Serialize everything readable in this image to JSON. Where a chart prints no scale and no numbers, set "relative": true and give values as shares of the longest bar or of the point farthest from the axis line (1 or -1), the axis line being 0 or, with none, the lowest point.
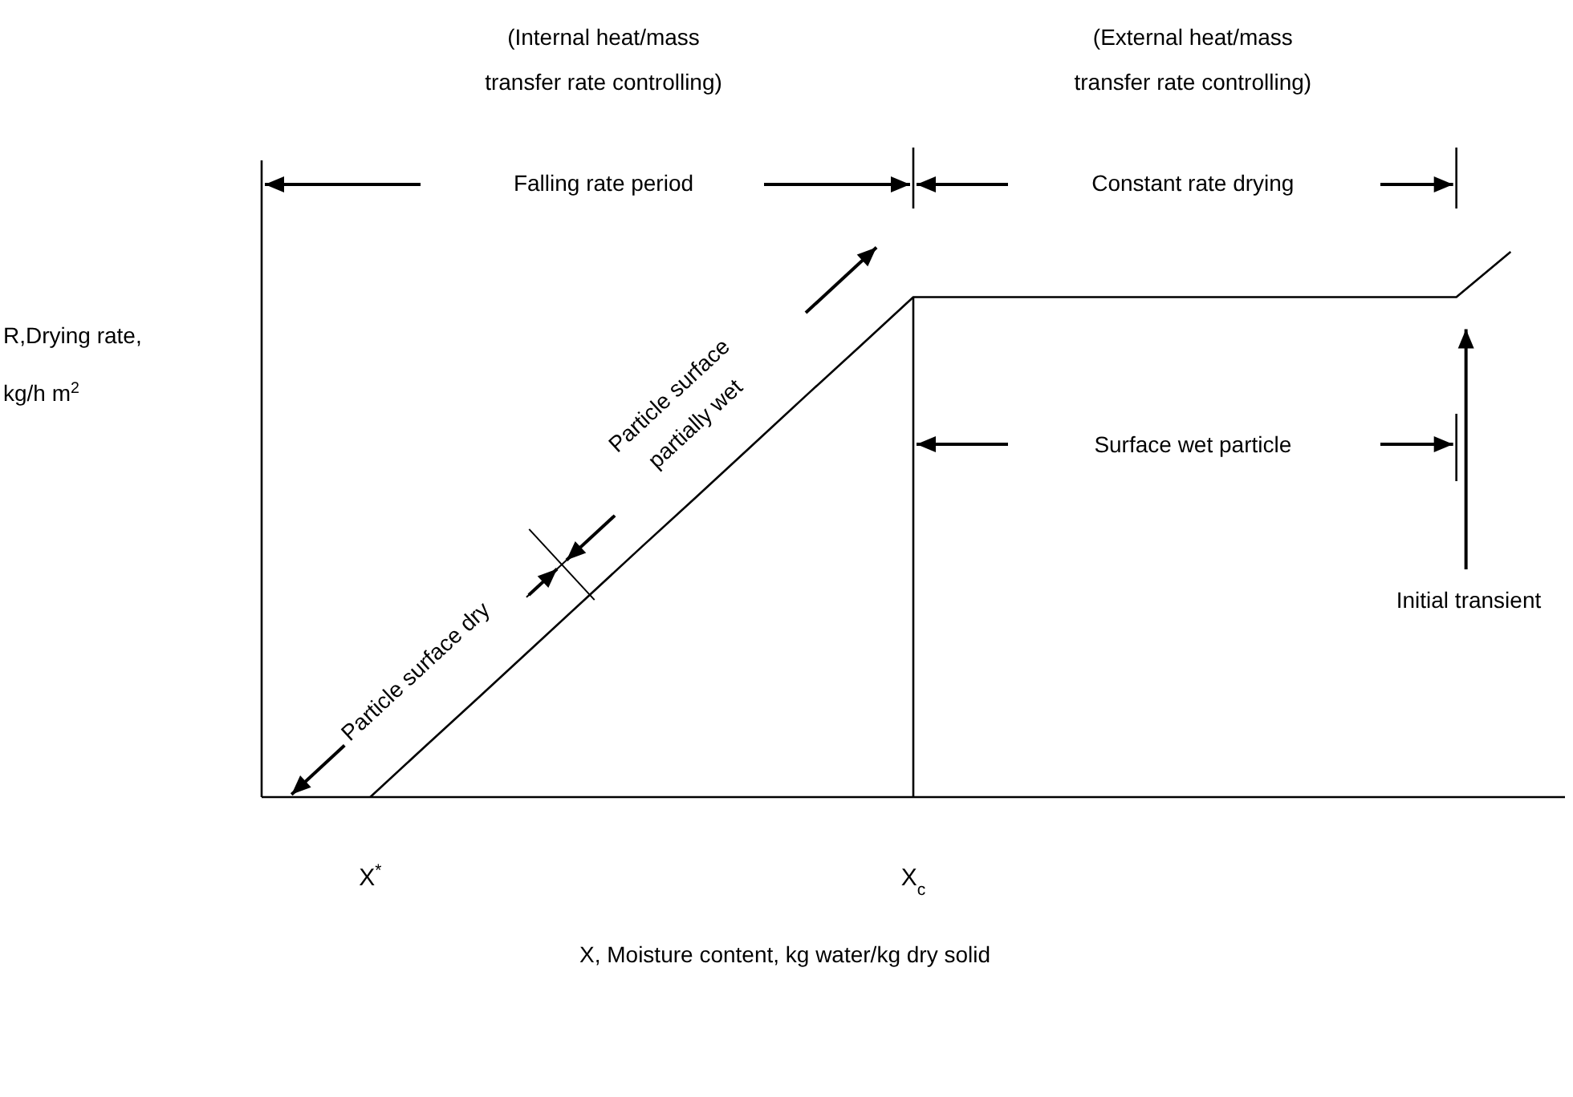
{
  "chart_data": {
    "type": "line",
    "relative": true,
    "xlabel": "X, Moisture content, kg water/kg dry solid",
    "ylabel": "R,Drying rate,\nkg/h m$^{2}$",
    "categories": [
      null,
      null,
      "X$^{*}$",
      null,
      null,
      null,
      null,
      null,
      null,
      null,
      null,
      null,
      "X$_{c}$",
      null,
      null,
      null,
      null,
      null,
      null,
      null,
      null,
      null,
      null,
      null,
      null
    ],
    "series": [
      {
        "color": "#000000",
        "values": [
          null,
          null,
          0,
          0.092,
          0.183,
          0.275,
          0.367,
          0.459,
          0.55,
          0.642,
          0.734,
          0.825,
          0.917,
          0.917,
          0.917,
          0.917,
          0.917,
          0.917,
          0.917,
          0.917,
          0.917,
          0.917,
          0.917,
          1,
          null
        ]
      }
    ],
    "ref_lines": [
      {
        "axis": "x",
        "value": "X$_{c}$",
        "color": "#000000"
      }
    ],
    "marker": "none",
    "line_style": "solid",
    "annotations": [
      "(Internal heat/mass\ntransfer rate controlling)",
      "(External heat/mass\ntransfer rate controlling)",
      "Falling rate period",
      "Constant rate drying",
      "Particle surface\npartially wet",
      "Particle surface dry",
      "Surface wet particle",
      "Initial transient"
    ]
  }
}
